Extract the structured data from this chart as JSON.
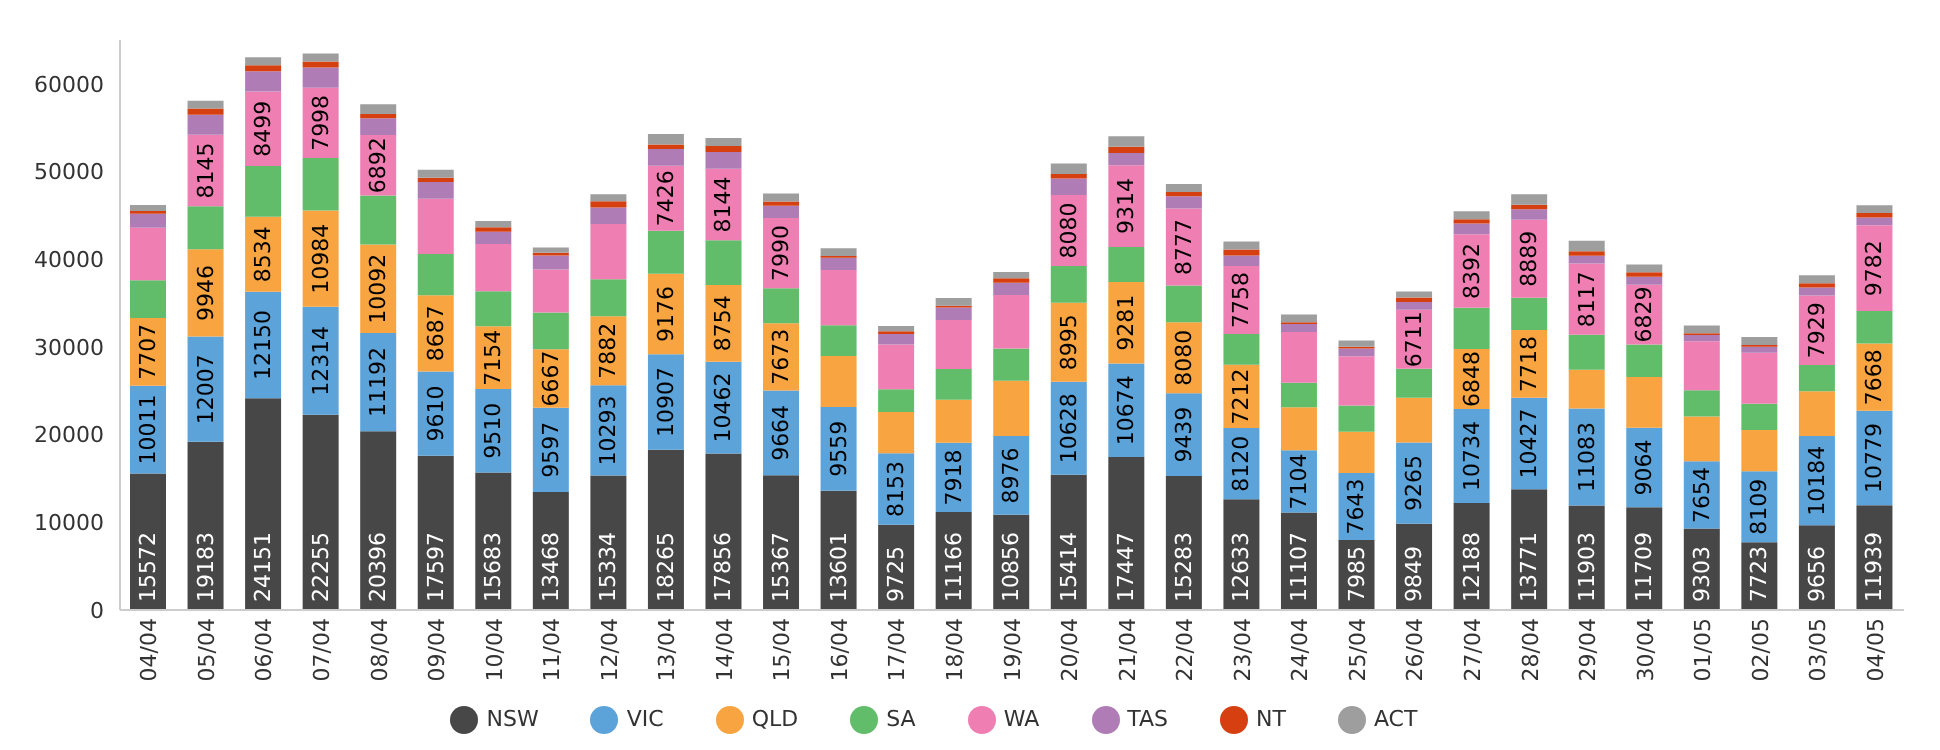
{
  "chart_data": {
    "type": "bar",
    "stacked": true,
    "legend": "bottom",
    "grid": false,
    "data_labels": false,
    "categories": [
      "04/04",
      "05/04",
      "06/04",
      "07/04",
      "08/04",
      "09/04",
      "10/04",
      "11/04",
      "12/04",
      "13/04",
      "14/04",
      "15/04",
      "16/04",
      "17/04",
      "18/04",
      "19/04",
      "20/04",
      "21/04",
      "22/04",
      "23/04",
      "24/04",
      "25/04",
      "26/04",
      "27/04",
      "28/04",
      "29/04",
      "30/04",
      "01/05",
      "02/05",
      "03/05",
      "04/05"
    ],
    "ylim": [
      0,
      65000
    ],
    "yticks": [
      0,
      10000,
      20000,
      30000,
      40000,
      50000,
      60000
    ],
    "series": [
      {
        "name": "NSW",
        "color": "#474747",
        "values": [
          15572,
          19183,
          24151,
          22255,
          20396,
          17597,
          15683,
          13468,
          15334,
          18265,
          17856,
          15367,
          13601,
          9725,
          11166,
          10856,
          15414,
          17447,
          15283,
          12633,
          11107,
          7985,
          9849,
          12188,
          13771,
          11903,
          11709,
          9303,
          7723,
          9656,
          11939
        ],
        "value_labels": [
          "15572",
          "19183",
          "24151",
          "22255",
          "20396",
          "17597",
          "15683",
          "13468",
          "15334",
          "18265",
          "17856",
          "15367",
          "13601",
          "9725",
          "11166",
          "10856",
          "15414",
          "17447",
          "15283",
          "12633",
          "11107",
          "7985",
          "9849",
          "12188",
          "13771",
          "11903",
          "11709",
          "9303",
          "7723",
          "9656",
          "11939"
        ]
      },
      {
        "name": "VIC",
        "color": "#5ba3d9",
        "values": [
          10011,
          12007,
          12150,
          12314,
          11192,
          9610,
          9510,
          9597,
          10293,
          10907,
          10462,
          9664,
          9559,
          8153,
          7918,
          8976,
          10628,
          10674,
          9439,
          8120,
          7104,
          7643,
          9265,
          10734,
          10427,
          11083,
          9064,
          7654,
          8109,
          10184,
          10779
        ],
        "value_labels": [
          "10011",
          "12007",
          "12150",
          "12314",
          "11192",
          "9610",
          "9510",
          "9597",
          "10293",
          "10907",
          "10462",
          "9664",
          "9559",
          "8153",
          "7918",
          "8976",
          "10628",
          "10674",
          "9439",
          "8120",
          "7104",
          "7643",
          "9265",
          "10734",
          "10427",
          "11083",
          "9064",
          "7654",
          "8109",
          "10184",
          "10779"
        ]
      },
      {
        "name": "QLD",
        "color": "#f8a541",
        "values": [
          7707,
          9946,
          8534,
          10984,
          10092,
          8687,
          7154,
          6667,
          7882,
          9176,
          8754,
          7673,
          5800,
          4700,
          4900,
          6300,
          8995,
          9281,
          8080,
          7212,
          4900,
          4700,
          5100,
          6848,
          7718,
          4400,
          5800,
          5100,
          4700,
          5100,
          7668
        ],
        "value_labels": [
          "7707",
          "9946",
          "8534",
          "10984",
          "10092",
          "8687",
          "7154",
          "6667",
          "7882",
          "9176",
          "8754",
          "7673",
          null,
          null,
          null,
          null,
          "8995",
          "9281",
          "8080",
          "7212",
          null,
          null,
          null,
          "6848",
          "7718",
          null,
          null,
          null,
          null,
          null,
          "7668"
        ]
      },
      {
        "name": "SA",
        "color": "#62bd6a",
        "values": [
          4300,
          4900,
          5800,
          6000,
          5600,
          4700,
          4000,
          4200,
          4200,
          4900,
          5100,
          4000,
          3500,
          2600,
          3500,
          3700,
          4200,
          4000,
          4200,
          3500,
          2800,
          3000,
          3300,
          4700,
          3700,
          4000,
          3700,
          3000,
          3000,
          3000,
          3700
        ]
      },
      {
        "name": "WA",
        "color": "#ef7fb2",
        "values": [
          6000,
          8145,
          8499,
          7998,
          6892,
          6300,
          5400,
          4900,
          6300,
          7426,
          8144,
          7990,
          6300,
          5100,
          5600,
          6100,
          8080,
          9314,
          8777,
          7758,
          5800,
          5600,
          6711,
          8392,
          8889,
          8117,
          6829,
          5600,
          5800,
          7929,
          9782
        ],
        "value_labels": [
          null,
          "8145",
          "8499",
          "7998",
          "6892",
          null,
          null,
          null,
          null,
          "7426",
          "8144",
          "7990",
          null,
          null,
          null,
          null,
          "8080",
          "9314",
          "8777",
          "7758",
          null,
          null,
          "6711",
          "8392",
          "8889",
          "8117",
          "6829",
          null,
          null,
          "7929",
          "9782"
        ]
      },
      {
        "name": "TAS",
        "color": "#b07cb5",
        "values": [
          1600,
          2300,
          2300,
          2300,
          1900,
          1900,
          1400,
          1600,
          1900,
          1900,
          1900,
          1400,
          1400,
          1200,
          1400,
          1400,
          1900,
          1400,
          1400,
          1200,
          900,
          900,
          900,
          1200,
          1200,
          900,
          900,
          700,
          700,
          900,
          900
        ]
      },
      {
        "name": "NT",
        "color": "#d64010",
        "values": [
          300,
          700,
          700,
          700,
          500,
          500,
          500,
          300,
          700,
          500,
          700,
          500,
          200,
          300,
          200,
          500,
          500,
          700,
          500,
          700,
          200,
          200,
          500,
          500,
          500,
          500,
          500,
          200,
          200,
          500,
          500
        ]
      },
      {
        "name": "ACT",
        "color": "#9e9e9e",
        "values": [
          700,
          900,
          900,
          900,
          1100,
          900,
          700,
          600,
          800,
          1200,
          900,
          900,
          900,
          600,
          900,
          700,
          1200,
          1200,
          900,
          900,
          900,
          700,
          700,
          900,
          1200,
          1200,
          900,
          900,
          900,
          900,
          900
        ]
      }
    ]
  }
}
